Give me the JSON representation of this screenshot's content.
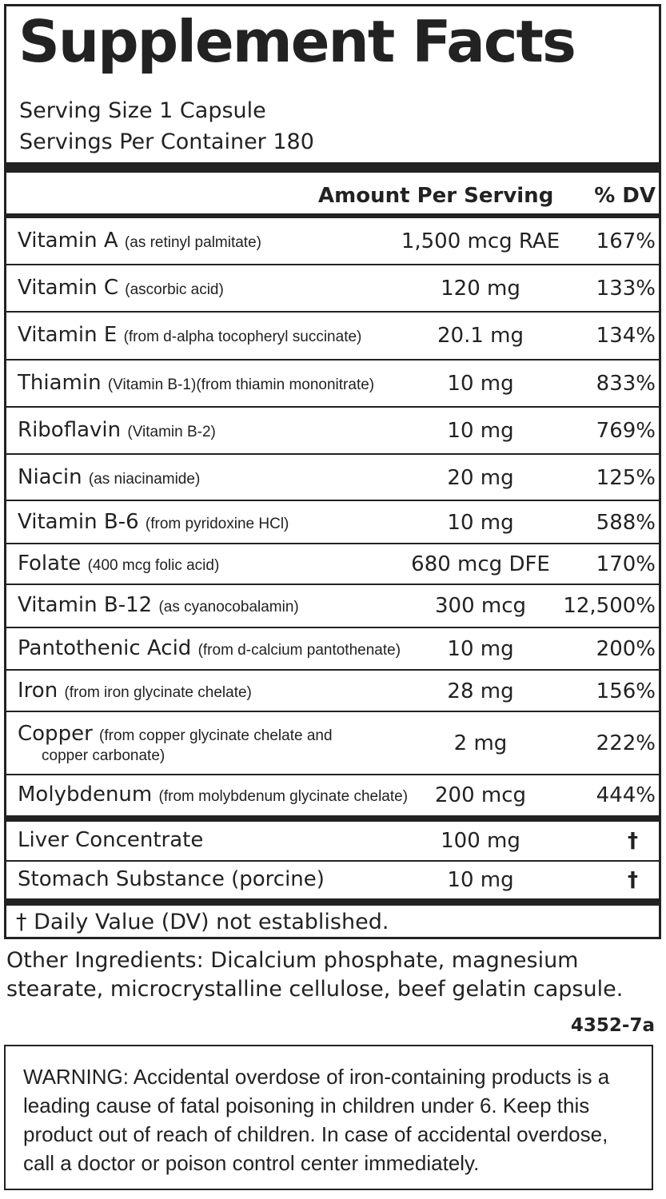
{
  "title": "Supplement Facts",
  "serving_size": "Serving Size 1 Capsule",
  "servings_per_container": "Servings Per Container 180",
  "header": {
    "amount": "Amount Per Serving",
    "dv": "% DV"
  },
  "nutrients": [
    {
      "name": "Vitamin A",
      "source": "(as retinyl palmitate)",
      "amount": "1,500 mcg RAE",
      "dv": "167%"
    },
    {
      "name": "Vitamin C",
      "source": "(ascorbic acid)",
      "amount": "120 mg",
      "dv": "133%"
    },
    {
      "name": "Vitamin E",
      "source": "(from d-alpha tocopheryl succinate)",
      "amount": "20.1 mg",
      "dv": "134%"
    },
    {
      "name": "Thiamin",
      "source": "(Vitamin B-1)(from thiamin mononitrate)",
      "amount": "10 mg",
      "dv": "833%"
    },
    {
      "name": "Riboflavin",
      "source": "(Vitamin B-2)",
      "amount": "10 mg",
      "dv": "769%"
    },
    {
      "name": "Niacin",
      "source": "(as niacinamide)",
      "amount": "20 mg",
      "dv": "125%"
    },
    {
      "name": "Vitamin B-6",
      "source": "(from pyridoxine HCl)",
      "amount": "10 mg",
      "dv": "588%"
    },
    {
      "name": "Folate",
      "source": "(400 mcg folic acid)",
      "amount": "680 mcg DFE",
      "dv": "170%"
    },
    {
      "name": "Vitamin B-12",
      "source": "(as cyanocobalamin)",
      "amount": "300 mcg",
      "dv": "12,500%"
    },
    {
      "name": "Pantothenic Acid",
      "source": "(from d-calcium pantothenate)",
      "amount": "10 mg",
      "dv": "200%"
    },
    {
      "name": "Iron",
      "source": "(from iron glycinate chelate)",
      "amount": "28 mg",
      "dv": "156%"
    },
    {
      "name": "Copper",
      "source": "(from copper glycinate chelate and",
      "source_line2": "copper carbonate)",
      "amount": "2 mg",
      "dv": "222%"
    },
    {
      "name": "Molybdenum",
      "source": "(from molybdenum glycinate chelate)",
      "amount": "200 mcg",
      "dv": "444%"
    }
  ],
  "other_nutrients": [
    {
      "name": "Liver Concentrate",
      "amount": "100 mg",
      "dv": "†"
    },
    {
      "name": "Stomach Substance (porcine)",
      "amount": "10 mg",
      "dv": "†"
    }
  ],
  "footnote": "† Daily Value (DV) not established.",
  "other_ingredients": "Other Ingredients: Dicalcium phosphate, magnesium stearate, microcrystalline cellulose, beef gelatin capsule.",
  "product_code": "4352-7a",
  "warning": "WARNING: Accidental overdose of iron-containing products is a leading cause of fatal poisoning in children under 6.  Keep this product out of reach of children.  In case of accidental overdose, call a doctor or poison control center immediately."
}
